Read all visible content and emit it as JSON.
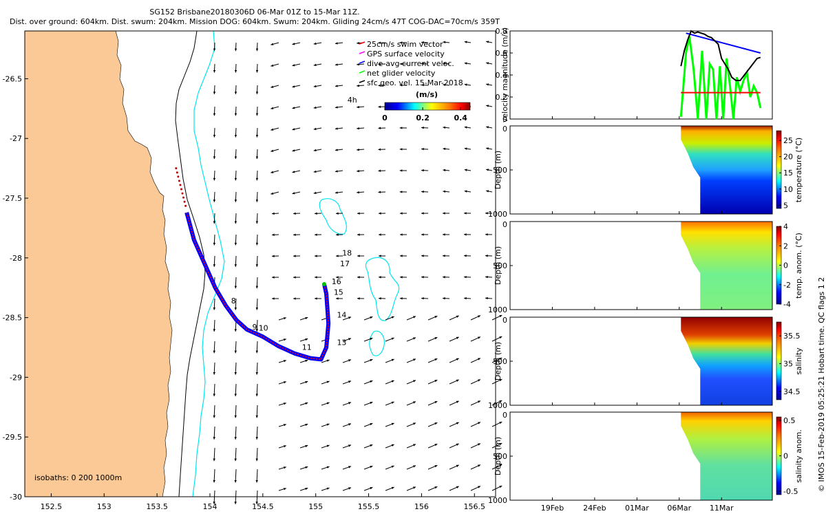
{
  "header": {
    "title_line1": "SG152 Brisbane20180306D 06-Mar 01Z to 15-Mar 11Z.",
    "title_line2": "Dist. over ground: 604km. Dist. swum: 204km. Mission DOG: 604km. Swum: 204km. Gliding 24cm/s 47T COG-DAC=70cm/s 359T"
  },
  "credit": "© IMOS 15-Feb-2019 05:25:21 Hobart time. QC flags 1  2",
  "colors": {
    "land": "#fbc995",
    "coast_line": "#000000",
    "isobath_1000": "#00e5ee",
    "swim": "#ff0000",
    "gps": "#ff00ff",
    "dac": "#0000ff",
    "net": "#00ff00",
    "geo": "#000000"
  },
  "chart_data": [
    {
      "type": "map",
      "id": "track_map",
      "xlim": [
        152.25,
        156.7
      ],
      "ylim": [
        -30.0,
        -26.1
      ],
      "xticks": [
        "152.5",
        "153",
        "153.5",
        "154",
        "154.5",
        "155",
        "155.5",
        "156",
        "156.5"
      ],
      "yticks": [
        "-26.5",
        "-27",
        "-27.5",
        "-28",
        "-28.5",
        "-29",
        "-29.5",
        "-30"
      ],
      "isobath_note": "isobaths: 0   200  1000m",
      "legend": [
        {
          "label": "25cm/s swim vector",
          "color": "#ff0000"
        },
        {
          "label": "GPS surface velocity",
          "color": "#ff00ff"
        },
        {
          "label": "dive-avg current veloc.",
          "color": "#0000ff"
        },
        {
          "label": "net glider velocity",
          "color": "#00ff00"
        },
        {
          "label": "sfc geo. vel. 15-Mar-2018",
          "color": "#000000"
        }
      ],
      "colorbar": {
        "label": "(m/s)",
        "ticks": [
          "0",
          "0.2",
          "0.4"
        ],
        "range": [
          0,
          0.45
        ]
      },
      "track": [
        [
          153.78,
          -27.62
        ],
        [
          153.85,
          -27.85
        ],
        [
          153.95,
          -28.05
        ],
        [
          154.05,
          -28.25
        ],
        [
          154.15,
          -28.4
        ],
        [
          154.25,
          -28.52
        ],
        [
          154.35,
          -28.6
        ],
        [
          154.5,
          -28.66
        ],
        [
          154.65,
          -28.74
        ],
        [
          154.8,
          -28.8
        ],
        [
          154.95,
          -28.84
        ],
        [
          155.05,
          -28.85
        ],
        [
          155.1,
          -28.75
        ],
        [
          155.12,
          -28.55
        ],
        [
          155.1,
          -28.3
        ],
        [
          155.08,
          -28.22
        ]
      ],
      "day_labels": [
        {
          "text": "8",
          "lon": 154.2,
          "lat": -28.38
        },
        {
          "text": "9",
          "lon": 154.4,
          "lat": -28.6
        },
        {
          "text": "10",
          "lon": 154.46,
          "lat": -28.61
        },
        {
          "text": "11",
          "lon": 154.87,
          "lat": -28.77
        },
        {
          "text": "13",
          "lon": 155.2,
          "lat": -28.73
        },
        {
          "text": "14",
          "lon": 155.2,
          "lat": -28.5
        },
        {
          "text": "15",
          "lon": 155.17,
          "lat": -28.31
        },
        {
          "text": "16",
          "lon": 155.15,
          "lat": -28.22
        },
        {
          "text": "17",
          "lon": 155.23,
          "lat": -28.07
        },
        {
          "text": "18",
          "lon": 155.25,
          "lat": -27.98
        },
        {
          "text": "4h",
          "lon": 155.3,
          "lat": -26.7
        }
      ]
    },
    {
      "type": "line",
      "id": "velocity_panel",
      "ylabel": "velocity magnitude (m/s)",
      "ylim": [
        0,
        0.8
      ],
      "yticks": [
        "0",
        "0.2",
        "0.4",
        "0.6",
        "0.8"
      ],
      "time_axis": [
        "19Feb",
        "24Feb",
        "01Mar",
        "06Mar",
        "11Mar"
      ],
      "series": [
        {
          "name": "net glider velocity",
          "color": "#00ff00",
          "x": [
            0,
            0.6,
            1.0,
            1.5,
            2.0,
            2.5,
            3.0,
            3.4,
            3.8,
            4.2,
            4.6,
            5.0,
            5.4,
            5.8,
            6.2,
            6.6,
            7.0,
            7.4,
            7.8,
            8.2,
            8.6,
            9.0,
            9.4
          ],
          "values": [
            0.02,
            0.6,
            0.75,
            0.45,
            0.0,
            0.62,
            0.0,
            0.5,
            0.45,
            0.0,
            0.48,
            0.0,
            0.55,
            0.3,
            0.0,
            0.38,
            0.25,
            0.35,
            0.42,
            0.2,
            0.3,
            0.24,
            0.1
          ]
        },
        {
          "name": "swim speed",
          "color": "#ff0000",
          "x": [
            0,
            9.4
          ],
          "values": [
            0.24,
            0.24
          ]
        },
        {
          "name": "dive-avg current",
          "color": "#0000ff",
          "x": [
            0.6,
            9.4
          ],
          "values": [
            0.78,
            0.6
          ]
        },
        {
          "name": "sfc velocity",
          "color": "#000000",
          "x": [
            0,
            0.4,
            0.8,
            1.2,
            1.6,
            2.0,
            2.4,
            2.8,
            3.2,
            3.6,
            4.0,
            4.4,
            4.8,
            5.2,
            5.6,
            6.0,
            6.5,
            7.0,
            7.5,
            8.0,
            8.5,
            9.0,
            9.4
          ],
          "values": [
            0.48,
            0.62,
            0.72,
            0.8,
            0.78,
            0.79,
            0.78,
            0.77,
            0.75,
            0.74,
            0.71,
            0.68,
            0.55,
            0.5,
            0.45,
            0.38,
            0.35,
            0.35,
            0.4,
            0.45,
            0.5,
            0.55,
            0.56
          ]
        }
      ]
    },
    {
      "type": "heatmap",
      "id": "temperature_section",
      "ylabel": "Depth (m)",
      "yticks": [
        "0",
        "500",
        "1000"
      ],
      "ylim": [
        1000,
        0
      ],
      "colorbar_label": "temperature (°C)",
      "colorbar_ticks": [
        "5",
        "10",
        "15",
        "20",
        "25"
      ],
      "colorbar_range": [
        4,
        28
      ]
    },
    {
      "type": "heatmap",
      "id": "temperature_anomaly_section",
      "ylabel": "Depth (m)",
      "yticks": [
        "0",
        "500",
        "1000"
      ],
      "ylim": [
        1000,
        0
      ],
      "colorbar_label": "temp. anom. (°C)",
      "colorbar_ticks": [
        "-4",
        "-2",
        "0",
        "2",
        "4"
      ],
      "colorbar_range": [
        -4,
        4
      ]
    },
    {
      "type": "heatmap",
      "id": "salinity_section",
      "ylabel": "Depth (m)",
      "yticks": [
        "0",
        "500",
        "1000"
      ],
      "ylim": [
        1000,
        0
      ],
      "colorbar_label": "salinity",
      "colorbar_ticks": [
        "34.5",
        "35",
        "35.5"
      ],
      "colorbar_range": [
        34.35,
        35.75
      ]
    },
    {
      "type": "heatmap",
      "id": "salinity_anomaly_section",
      "ylabel": "Depth (m)",
      "yticks": [
        "0",
        "500",
        "1000"
      ],
      "ylim": [
        1000,
        0
      ],
      "colorbar_label": "salinity anom.",
      "colorbar_ticks": [
        "-0.5",
        "0",
        "0.5"
      ],
      "colorbar_range": [
        -0.55,
        0.55
      ],
      "time_axis": [
        "19Feb",
        "24Feb",
        "01Mar",
        "06Mar",
        "11Mar"
      ]
    }
  ]
}
